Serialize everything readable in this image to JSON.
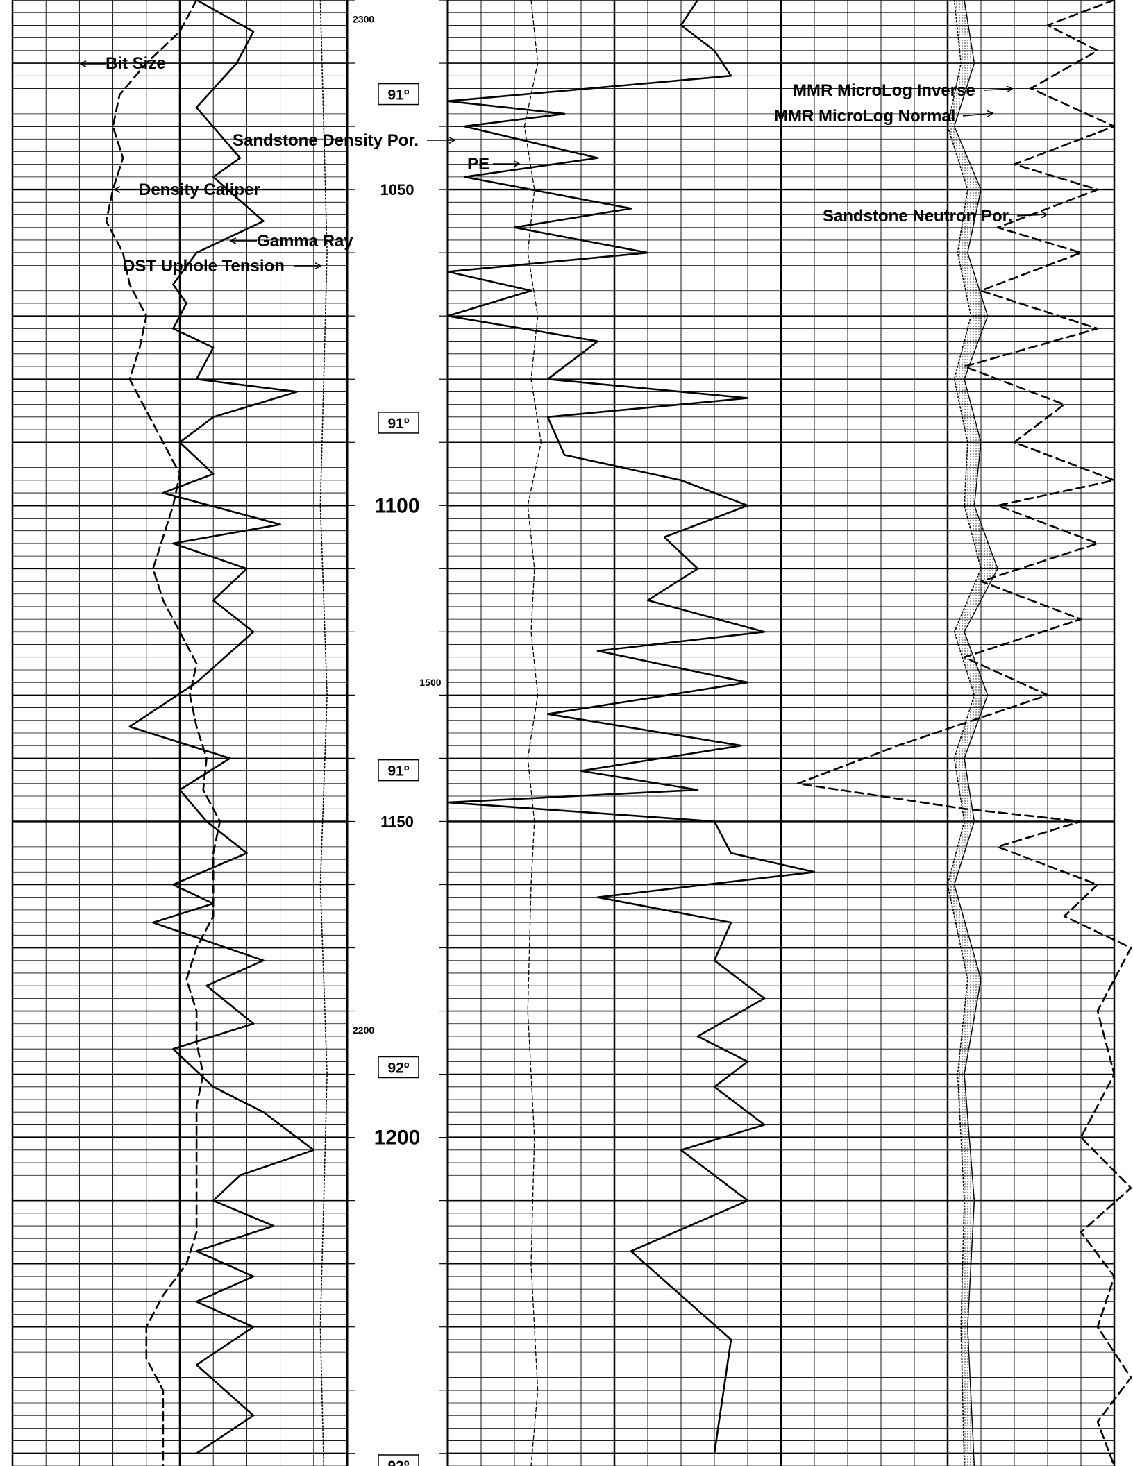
{
  "chart_data": {
    "type": "line",
    "title": "",
    "y_axis": {
      "label": "",
      "major_ticks": [
        {
          "depth": 1050,
          "label": "1050"
        },
        {
          "depth": 1100,
          "label": "1100"
        },
        {
          "depth": 1150,
          "label": "1150"
        },
        {
          "depth": 1200,
          "label": "1200"
        }
      ],
      "ylim": [
        1020,
        1252
      ]
    },
    "auxiliary_labels": [
      {
        "depth": 1023,
        "label": "2300"
      },
      {
        "depth": 1128,
        "label": "1500"
      },
      {
        "depth": 1183,
        "label": "2200"
      }
    ],
    "angle_labels": [
      {
        "depth": 1035,
        "label": "91º"
      },
      {
        "depth": 1087,
        "label": "91º"
      },
      {
        "depth": 1142,
        "label": "91º"
      },
      {
        "depth": 1189,
        "label": "92º"
      },
      {
        "depth": 1252,
        "label": "92º"
      }
    ],
    "curve_labels": {
      "bit_size": "Bit Size",
      "density_caliper": "Density Caliper",
      "gamma_ray": "Gamma Ray",
      "dst_uphole_tension": "DST Uphole Tension",
      "sandstone_density_por": "Sandstone Density Por.",
      "pe": "PE",
      "mmr_micrology_inverse": "MMR MicroLog Inverse",
      "mmr_micrology_normal": "MMR MicroLog Normal",
      "sandstone_neutron_por": "Sandstone Neutron Por."
    },
    "series": [
      {
        "key": "density_caliper",
        "track": 1,
        "style": "dashed",
        "x": [
          0.55,
          0.5,
          0.4,
          0.32,
          0.3,
          0.33,
          0.3,
          0.28,
          0.33,
          0.35,
          0.4,
          0.38,
          0.35,
          0.4,
          0.45,
          0.5,
          0.48,
          0.45,
          0.42,
          0.45,
          0.5,
          0.55,
          0.53,
          0.55,
          0.58,
          0.57,
          0.62,
          0.6,
          0.6,
          0.6,
          0.55,
          0.52,
          0.55,
          0.55,
          0.57,
          0.55,
          0.55,
          0.55,
          0.55,
          0.55,
          0.52,
          0.45,
          0.4,
          0.4,
          0.45,
          0.45,
          0.45,
          0.45
        ],
        "depth": [
          1020,
          1025,
          1030,
          1035,
          1040,
          1045,
          1050,
          1055,
          1060,
          1065,
          1070,
          1075,
          1080,
          1085,
          1090,
          1095,
          1100,
          1105,
          1110,
          1115,
          1120,
          1125,
          1130,
          1135,
          1140,
          1145,
          1150,
          1155,
          1160,
          1165,
          1170,
          1175,
          1180,
          1185,
          1190,
          1195,
          1200,
          1205,
          1210,
          1215,
          1220,
          1225,
          1230,
          1235,
          1240,
          1245,
          1250,
          1252
        ]
      },
      {
        "key": "gamma_ray",
        "track": 1,
        "style": "solid",
        "x": [
          0.55,
          0.72,
          0.67,
          0.55,
          0.68,
          0.6,
          0.75,
          0.55,
          0.48,
          0.52,
          0.48,
          0.6,
          0.55,
          0.85,
          0.6,
          0.5,
          0.6,
          0.45,
          0.8,
          0.48,
          0.7,
          0.6,
          0.72,
          0.55,
          0.35,
          0.65,
          0.5,
          0.58,
          0.7,
          0.48,
          0.6,
          0.42,
          0.75,
          0.58,
          0.72,
          0.48,
          0.6,
          0.75,
          0.9,
          0.68,
          0.6,
          0.78,
          0.55,
          0.72,
          0.55,
          0.72,
          0.55,
          0.72,
          0.55
        ],
        "depth": [
          1020,
          1025,
          1030,
          1037,
          1045,
          1048,
          1055,
          1060,
          1065,
          1068,
          1072,
          1075,
          1080,
          1082,
          1086,
          1090,
          1095,
          1098,
          1103,
          1106,
          1110,
          1115,
          1120,
          1128,
          1135,
          1140,
          1145,
          1150,
          1155,
          1160,
          1163,
          1166,
          1172,
          1176,
          1182,
          1186,
          1192,
          1196,
          1202,
          1206,
          1210,
          1214,
          1218,
          1222,
          1226,
          1230,
          1236,
          1244,
          1250
        ]
      },
      {
        "key": "dst_uphole_tension",
        "track": 1,
        "style": "dotted",
        "x": [
          0.92,
          0.93,
          0.94,
          0.93,
          0.92,
          0.93,
          0.94,
          0.93,
          0.92,
          0.93,
          0.94,
          0.93,
          0.92,
          0.93
        ],
        "depth": [
          1020,
          1040,
          1060,
          1080,
          1100,
          1115,
          1130,
          1145,
          1160,
          1175,
          1190,
          1210,
          1230,
          1252
        ]
      },
      {
        "key": "sandstone_density_por",
        "track": 2,
        "style": "solid",
        "x": [
          0.75,
          0.7,
          0.8,
          0.85,
          0.0,
          0.35,
          0.05,
          0.45,
          0.05,
          0.55,
          0.2,
          0.6,
          0.0,
          0.25,
          0.0,
          0.45,
          0.3,
          0.9,
          0.3,
          0.35,
          0.7,
          0.9,
          0.65,
          0.75,
          0.6,
          0.95,
          0.45,
          0.9,
          0.3,
          0.88,
          0.4,
          0.75,
          0.0,
          0.8,
          0.85,
          1.1,
          0.45,
          0.85,
          0.8,
          0.95,
          0.75,
          0.9,
          0.8,
          0.95,
          0.7,
          0.9,
          0.55,
          0.85,
          0.8
        ],
        "depth": [
          1020,
          1024,
          1028,
          1032,
          1036,
          1038,
          1040,
          1045,
          1048,
          1053,
          1056,
          1060,
          1063,
          1066,
          1070,
          1074,
          1080,
          1083,
          1086,
          1092,
          1096,
          1100,
          1105,
          1110,
          1115,
          1120,
          1123,
          1128,
          1133,
          1138,
          1142,
          1145,
          1147,
          1150,
          1155,
          1158,
          1162,
          1166,
          1172,
          1178,
          1184,
          1188,
          1192,
          1198,
          1202,
          1210,
          1218,
          1232,
          1250
        ]
      },
      {
        "key": "pe",
        "track": 2,
        "style": "dashed-thin",
        "x": [
          0.25,
          0.27,
          0.23,
          0.26,
          0.24,
          0.27,
          0.25,
          0.28,
          0.24,
          0.26,
          0.25,
          0.27,
          0.24,
          0.26,
          0.25,
          0.24,
          0.26,
          0.25,
          0.27,
          0.25
        ],
        "depth": [
          1020,
          1030,
          1040,
          1050,
          1060,
          1070,
          1080,
          1090,
          1100,
          1110,
          1120,
          1130,
          1140,
          1150,
          1160,
          1180,
          1200,
          1220,
          1240,
          1252
        ]
      },
      {
        "key": "micrology_inverse",
        "track": 3,
        "style": "solid-thin",
        "x": [
          0.55,
          0.58,
          0.52,
          0.6,
          0.56,
          0.62,
          0.55,
          0.6,
          0.58,
          0.65,
          0.55,
          0.62,
          0.55,
          0.58,
          0.52,
          0.6,
          0.55,
          0.58,
          0.56,
          0.58
        ],
        "depth": [
          1020,
          1030,
          1040,
          1050,
          1060,
          1070,
          1080,
          1090,
          1100,
          1110,
          1120,
          1130,
          1140,
          1150,
          1160,
          1175,
          1190,
          1210,
          1230,
          1252
        ]
      },
      {
        "key": "micrology_normal",
        "track": 3,
        "style": "dotted",
        "x": [
          0.52,
          0.54,
          0.5,
          0.56,
          0.53,
          0.57,
          0.52,
          0.56,
          0.55,
          0.6,
          0.52,
          0.58,
          0.52,
          0.55,
          0.5,
          0.56,
          0.53,
          0.55,
          0.54,
          0.55
        ],
        "depth": [
          1020,
          1030,
          1040,
          1050,
          1060,
          1070,
          1080,
          1090,
          1100,
          1110,
          1120,
          1130,
          1140,
          1150,
          1160,
          1175,
          1190,
          1210,
          1230,
          1252
        ]
      },
      {
        "key": "sandstone_neutron_por",
        "track": 3,
        "style": "dashed",
        "x": [
          1.0,
          0.8,
          0.95,
          0.75,
          1.0,
          0.7,
          0.95,
          0.65,
          0.9,
          0.6,
          0.95,
          0.55,
          0.85,
          0.7,
          1.0,
          0.65,
          0.95,
          0.6,
          0.9,
          0.55,
          0.8,
          0.35,
          0.05,
          0.55,
          0.9,
          0.65,
          0.95,
          0.85,
          1.05,
          0.95,
          1.0,
          0.9,
          1.05,
          0.9,
          1.0,
          0.95,
          1.05,
          0.95,
          1.0
        ],
        "depth": [
          1020,
          1024,
          1028,
          1034,
          1040,
          1046,
          1050,
          1056,
          1060,
          1066,
          1072,
          1078,
          1084,
          1090,
          1096,
          1100,
          1106,
          1112,
          1118,
          1124,
          1130,
          1138,
          1144,
          1148,
          1150,
          1154,
          1160,
          1165,
          1170,
          1180,
          1190,
          1200,
          1208,
          1215,
          1222,
          1230,
          1238,
          1245,
          1252
        ]
      }
    ]
  }
}
